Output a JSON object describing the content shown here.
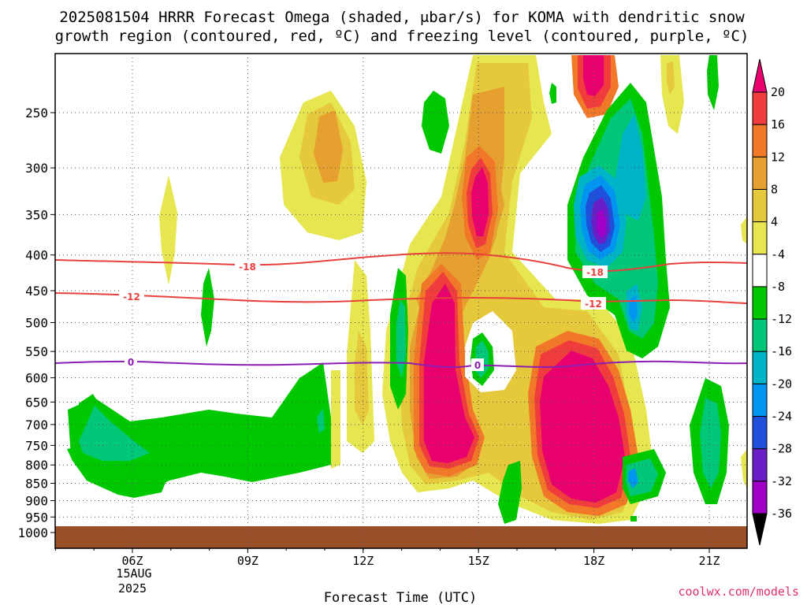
{
  "title_line1": "2025081504 HRRR Forecast Omega (shaded, μbar/s) for KOMA with dendritic snow",
  "title_line2": "growth region (contoured, red, ºC) and freezing level (contoured, purple, ºC)",
  "credit": "coolwx.com/models",
  "chart_data": {
    "type": "heatmap",
    "title": "2025081504 HRRR Forecast Omega (shaded, μbar/s) for KOMA with dendritic snow growth region (contoured, red, ºC) and freezing level (contoured, purple, ºC)",
    "xlabel": "Forecast Time (UTC)",
    "ylabel": "",
    "x_ticks": [
      "06Z",
      "09Z",
      "12Z",
      "15Z",
      "18Z",
      "21Z"
    ],
    "x_date_label": [
      "15AUG",
      "2025"
    ],
    "y_ticks": [
      "250",
      "300",
      "350",
      "400",
      "450",
      "500",
      "550",
      "600",
      "650",
      "700",
      "750",
      "800",
      "850",
      "900",
      "950",
      "1000"
    ],
    "y_scale": "log (pressure, hPa, reversed)",
    "grid": true,
    "colorbar": {
      "labels": [
        "20",
        "16",
        "12",
        "8",
        "4",
        "-4",
        "-8",
        "-12",
        "-16",
        "-20",
        "-24",
        "-28",
        "-32",
        "-36"
      ],
      "colors": [
        "#e8006e",
        "#f03c3c",
        "#f07828",
        "#e6a030",
        "#e6c83c",
        "#e6e650",
        "#ffffff",
        "#00c800",
        "#00c878",
        "#00b4c8",
        "#0096f0",
        "#1e50dc",
        "#6a1ec8",
        "#a000c8",
        "#b4b4b4",
        "#000000"
      ]
    },
    "contours": [
      {
        "name": "dendritic snow growth",
        "value": "-18",
        "color": "#e8403c"
      },
      {
        "name": "dendritic snow growth",
        "value": "-12",
        "color": "#e8403c"
      },
      {
        "name": "freezing level",
        "value": "0",
        "color": "#8c1eb4"
      }
    ],
    "surface_color": "#9a5028"
  }
}
